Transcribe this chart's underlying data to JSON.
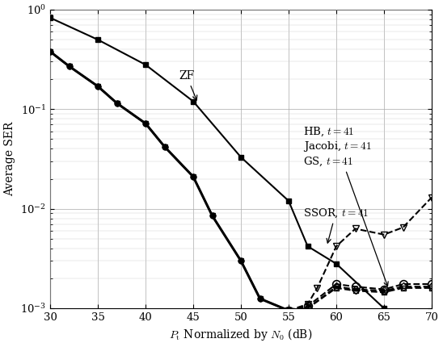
{
  "xlabel": "$P_{\\mathrm{t}}$ Normalized by $N_0$ (dB)",
  "ylabel": "Average SER",
  "xlim": [
    30,
    70
  ],
  "ylim": [
    0.001,
    1.0
  ],
  "x_ticks": [
    30,
    35,
    40,
    45,
    50,
    55,
    60,
    65,
    70
  ],
  "zf_x": [
    30,
    35,
    40,
    45,
    50,
    55,
    57,
    60,
    65
  ],
  "zf_y": [
    0.83,
    0.5,
    0.28,
    0.12,
    0.033,
    0.012,
    0.0042,
    0.0028,
    0.001
  ],
  "lmmse_x": [
    30,
    32,
    35,
    37,
    40,
    42,
    45,
    47,
    50,
    52,
    55
  ],
  "lmmse_y": [
    0.38,
    0.27,
    0.17,
    0.115,
    0.072,
    0.042,
    0.021,
    0.0085,
    0.003,
    0.00125,
    0.00095
  ],
  "ssor_x": [
    55,
    57,
    58,
    60,
    62,
    65,
    67,
    70
  ],
  "ssor_y": [
    0.00095,
    0.0011,
    0.0016,
    0.0042,
    0.0063,
    0.0055,
    0.0065,
    0.013
  ],
  "hb_x": [
    55,
    57,
    60,
    62,
    65,
    67,
    70
  ],
  "hb_y": [
    0.00095,
    0.00105,
    0.00175,
    0.00165,
    0.00155,
    0.00175,
    0.00175
  ],
  "jacobi_x": [
    55,
    57,
    60,
    62,
    65,
    67,
    70
  ],
  "jacobi_y": [
    0.00095,
    0.001,
    0.00165,
    0.00155,
    0.0015,
    0.00165,
    0.00165
  ],
  "gs_x": [
    55,
    57,
    60,
    62,
    65,
    67,
    70
  ],
  "gs_y": [
    0.00095,
    0.001,
    0.0016,
    0.0015,
    0.00145,
    0.0016,
    0.0016
  ]
}
